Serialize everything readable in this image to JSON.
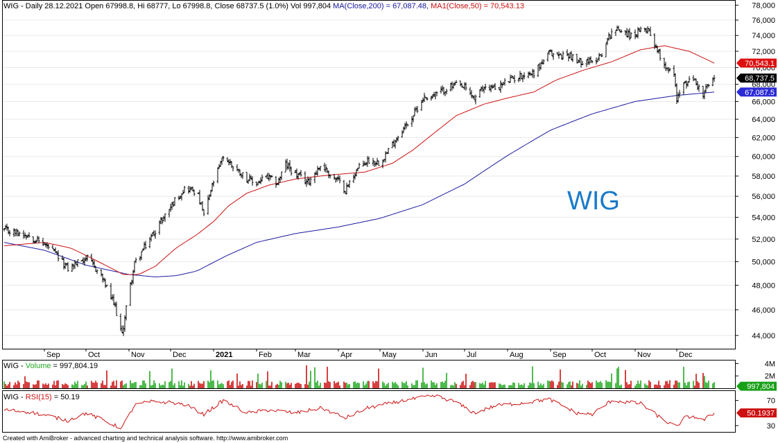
{
  "header": {
    "symbol": "WIG",
    "info": " - Daily 28.12.2021 Open 67998.8, Hi 68777, Lo 67998.8, Close 68737.5 (1.0%) Vol 997,804 ",
    "ma200_label": "MA(Close,200) = 67,087.48, ",
    "ma50_label": "MA1(Close,50) = 70,543.13"
  },
  "watermark": "WIG",
  "volume_header": {
    "prefix": "WIG - ",
    "label": "Volume",
    "value": " = 997,804.19"
  },
  "rsi_header": {
    "prefix": "WIG - ",
    "label": "RSI(15)",
    "value": " = 50.19"
  },
  "footer": "Created with AmiBroker - advanced charting and technical analysis software. http://www.amibroker.com",
  "colors": {
    "price": "#000000",
    "ma200": "#1a1aa0",
    "ma50": "#cc1111",
    "volume_up": "#22aa22",
    "volume_down": "#cc1111",
    "rsi": "#cc1111",
    "close_badge": "#000000",
    "ma200_badge": "#2b2bd6",
    "ma50_badge": "#dd1111",
    "volume_badge": "#18a018",
    "watermark": "#1a7ac8"
  },
  "chart_data": {
    "type": "line",
    "price_panel": {
      "y_ticks": [
        "44,000",
        "46,000",
        "48,000",
        "50,000",
        "52,000",
        "54,000",
        "56,000",
        "58,000",
        "60,000",
        "62,000",
        "64,000",
        "66,000",
        "68,000",
        "70,000",
        "72,000",
        "74,000",
        "76,000",
        "78,000"
      ],
      "ylim": [
        43000,
        78600
      ],
      "scale": "log",
      "x_labels": [
        "Sep",
        "Oct",
        "Nov",
        "Dec",
        "2021",
        "Feb",
        "Mar",
        "Apr",
        "May",
        "Jun",
        "Jul",
        "Aug",
        "Sep",
        "Oct",
        "Nov",
        "Dec"
      ],
      "price_anchors": [
        [
          "2020-08-03",
          52800
        ],
        [
          "2020-08-20",
          52400
        ],
        [
          "2020-09-05",
          51200
        ],
        [
          "2020-09-18",
          49400
        ],
        [
          "2020-10-01",
          50400
        ],
        [
          "2020-10-12",
          48800
        ],
        [
          "2020-10-22",
          46200
        ],
        [
          "2020-10-27",
          44000
        ],
        [
          "2020-10-30",
          46200
        ],
        [
          "2020-11-05",
          49800
        ],
        [
          "2020-11-15",
          51800
        ],
        [
          "2020-11-25",
          53800
        ],
        [
          "2020-12-05",
          55800
        ],
        [
          "2020-12-12",
          56900
        ],
        [
          "2020-12-20",
          56400
        ],
        [
          "2020-12-25",
          54200
        ],
        [
          "2021-01-01",
          57400
        ],
        [
          "2021-01-08",
          60000
        ],
        [
          "2021-01-15",
          59000
        ],
        [
          "2021-01-25",
          57800
        ],
        [
          "2021-01-31",
          57200
        ],
        [
          "2021-02-08",
          57900
        ],
        [
          "2021-02-16",
          57300
        ],
        [
          "2021-02-22",
          59200
        ],
        [
          "2021-03-01",
          58200
        ],
        [
          "2021-03-10",
          57400
        ],
        [
          "2021-03-20",
          59200
        ],
        [
          "2021-03-26",
          58100
        ],
        [
          "2021-04-01",
          57500
        ],
        [
          "2021-04-06",
          56600
        ],
        [
          "2021-04-14",
          58600
        ],
        [
          "2021-04-22",
          59600
        ],
        [
          "2021-04-30",
          59400
        ],
        [
          "2021-05-06",
          60400
        ],
        [
          "2021-05-14",
          62200
        ],
        [
          "2021-05-24",
          64200
        ],
        [
          "2021-06-01",
          66400
        ],
        [
          "2021-06-10",
          66800
        ],
        [
          "2021-06-18",
          67500
        ],
        [
          "2021-06-24",
          67900
        ],
        [
          "2021-07-01",
          67600
        ],
        [
          "2021-07-08",
          66300
        ],
        [
          "2021-07-16",
          67800
        ],
        [
          "2021-07-24",
          67500
        ],
        [
          "2021-08-01",
          68400
        ],
        [
          "2021-08-12",
          69100
        ],
        [
          "2021-08-20",
          69400
        ],
        [
          "2021-08-31",
          71700
        ],
        [
          "2021-09-08",
          71500
        ],
        [
          "2021-09-15",
          71600
        ],
        [
          "2021-09-20",
          70600
        ],
        [
          "2021-09-27",
          71000
        ],
        [
          "2021-10-01",
          70500
        ],
        [
          "2021-10-08",
          71800
        ],
        [
          "2021-10-15",
          74600
        ],
        [
          "2021-10-22",
          74800
        ],
        [
          "2021-10-29",
          73900
        ],
        [
          "2021-11-05",
          74500
        ],
        [
          "2021-11-10",
          75000
        ],
        [
          "2021-11-16",
          72600
        ],
        [
          "2021-11-22",
          70400
        ],
        [
          "2021-11-29",
          69100
        ],
        [
          "2021-12-01",
          66400
        ],
        [
          "2021-12-06",
          67900
        ],
        [
          "2021-12-13",
          68700
        ],
        [
          "2021-12-20",
          66700
        ],
        [
          "2021-12-23",
          67700
        ],
        [
          "2021-12-28",
          68737.5
        ]
      ],
      "ma50_anchors": [
        [
          "2020-08-03",
          51400
        ],
        [
          "2020-09-01",
          51700
        ],
        [
          "2020-09-20",
          51200
        ],
        [
          "2020-10-10",
          50000
        ],
        [
          "2020-10-28",
          48900
        ],
        [
          "2020-11-08",
          48900
        ],
        [
          "2020-11-20",
          49600
        ],
        [
          "2020-12-05",
          51200
        ],
        [
          "2020-12-20",
          52400
        ],
        [
          "2021-01-01",
          53600
        ],
        [
          "2021-01-12",
          55100
        ],
        [
          "2021-01-25",
          56300
        ],
        [
          "2021-02-10",
          57100
        ],
        [
          "2021-03-01",
          57700
        ],
        [
          "2021-03-25",
          58100
        ],
        [
          "2021-04-20",
          58400
        ],
        [
          "2021-05-10",
          59300
        ],
        [
          "2021-05-25",
          60700
        ],
        [
          "2021-06-10",
          62600
        ],
        [
          "2021-06-25",
          64400
        ],
        [
          "2021-07-15",
          65700
        ],
        [
          "2021-08-01",
          66400
        ],
        [
          "2021-08-20",
          67100
        ],
        [
          "2021-09-05",
          68500
        ],
        [
          "2021-09-25",
          69700
        ],
        [
          "2021-10-15",
          70700
        ],
        [
          "2021-11-05",
          72200
        ],
        [
          "2021-11-22",
          72700
        ],
        [
          "2021-12-10",
          72000
        ],
        [
          "2021-12-28",
          70543.13
        ]
      ],
      "ma200_anchors": [
        [
          "2020-08-03",
          51700
        ],
        [
          "2020-09-01",
          51000
        ],
        [
          "2020-10-01",
          49700
        ],
        [
          "2020-11-01",
          48900
        ],
        [
          "2020-11-20",
          48700
        ],
        [
          "2020-12-05",
          48800
        ],
        [
          "2020-12-20",
          49200
        ],
        [
          "2021-01-10",
          50500
        ],
        [
          "2021-02-01",
          51700
        ],
        [
          "2021-03-01",
          52500
        ],
        [
          "2021-04-01",
          53100
        ],
        [
          "2021-05-01",
          53900
        ],
        [
          "2021-06-01",
          55200
        ],
        [
          "2021-07-01",
          57200
        ],
        [
          "2021-08-01",
          60100
        ],
        [
          "2021-09-01",
          62800
        ],
        [
          "2021-10-01",
          64600
        ],
        [
          "2021-11-01",
          66000
        ],
        [
          "2021-12-01",
          66700
        ],
        [
          "2021-12-28",
          67087.48
        ]
      ],
      "last_close": "68,737.5",
      "last_ma50": "70,543.1",
      "last_ma200": "67,087.5",
      "hidden_tick": "68,000"
    },
    "volume_panel": {
      "y_ticks": [
        "4M",
        "2M"
      ],
      "ylim": [
        0,
        4500000
      ],
      "last_volume": "997,804",
      "last_volume_raw": 997804.19
    },
    "rsi_panel": {
      "y_ticks": [
        "70",
        "30"
      ],
      "ylim": [
        20,
        85
      ],
      "last_rsi": "50.1937",
      "rsi_anchors": [
        [
          "2020-08-03",
          55
        ],
        [
          "2020-08-20",
          52
        ],
        [
          "2020-09-05",
          45
        ],
        [
          "2020-09-18",
          38
        ],
        [
          "2020-10-01",
          50
        ],
        [
          "2020-10-12",
          40
        ],
        [
          "2020-10-22",
          30
        ],
        [
          "2020-10-27",
          27
        ],
        [
          "2020-11-05",
          62
        ],
        [
          "2020-11-15",
          68
        ],
        [
          "2020-12-01",
          67
        ],
        [
          "2020-12-12",
          63
        ],
        [
          "2020-12-25",
          48
        ],
        [
          "2021-01-08",
          70
        ],
        [
          "2021-01-25",
          50
        ],
        [
          "2021-02-10",
          55
        ],
        [
          "2021-03-01",
          50
        ],
        [
          "2021-03-20",
          58
        ],
        [
          "2021-04-06",
          42
        ],
        [
          "2021-04-22",
          58
        ],
        [
          "2021-05-14",
          68
        ],
        [
          "2021-06-01",
          75
        ],
        [
          "2021-06-10",
          77
        ],
        [
          "2021-06-24",
          68
        ],
        [
          "2021-07-08",
          50
        ],
        [
          "2021-07-24",
          62
        ],
        [
          "2021-08-12",
          66
        ],
        [
          "2021-08-31",
          72
        ],
        [
          "2021-09-20",
          50
        ],
        [
          "2021-10-01",
          48
        ],
        [
          "2021-10-15",
          70
        ],
        [
          "2021-11-05",
          65
        ],
        [
          "2021-11-22",
          38
        ],
        [
          "2021-12-01",
          28
        ],
        [
          "2021-12-06",
          42
        ],
        [
          "2021-12-13",
          45
        ],
        [
          "2021-12-20",
          38
        ],
        [
          "2021-12-28",
          50.19
        ]
      ]
    }
  }
}
